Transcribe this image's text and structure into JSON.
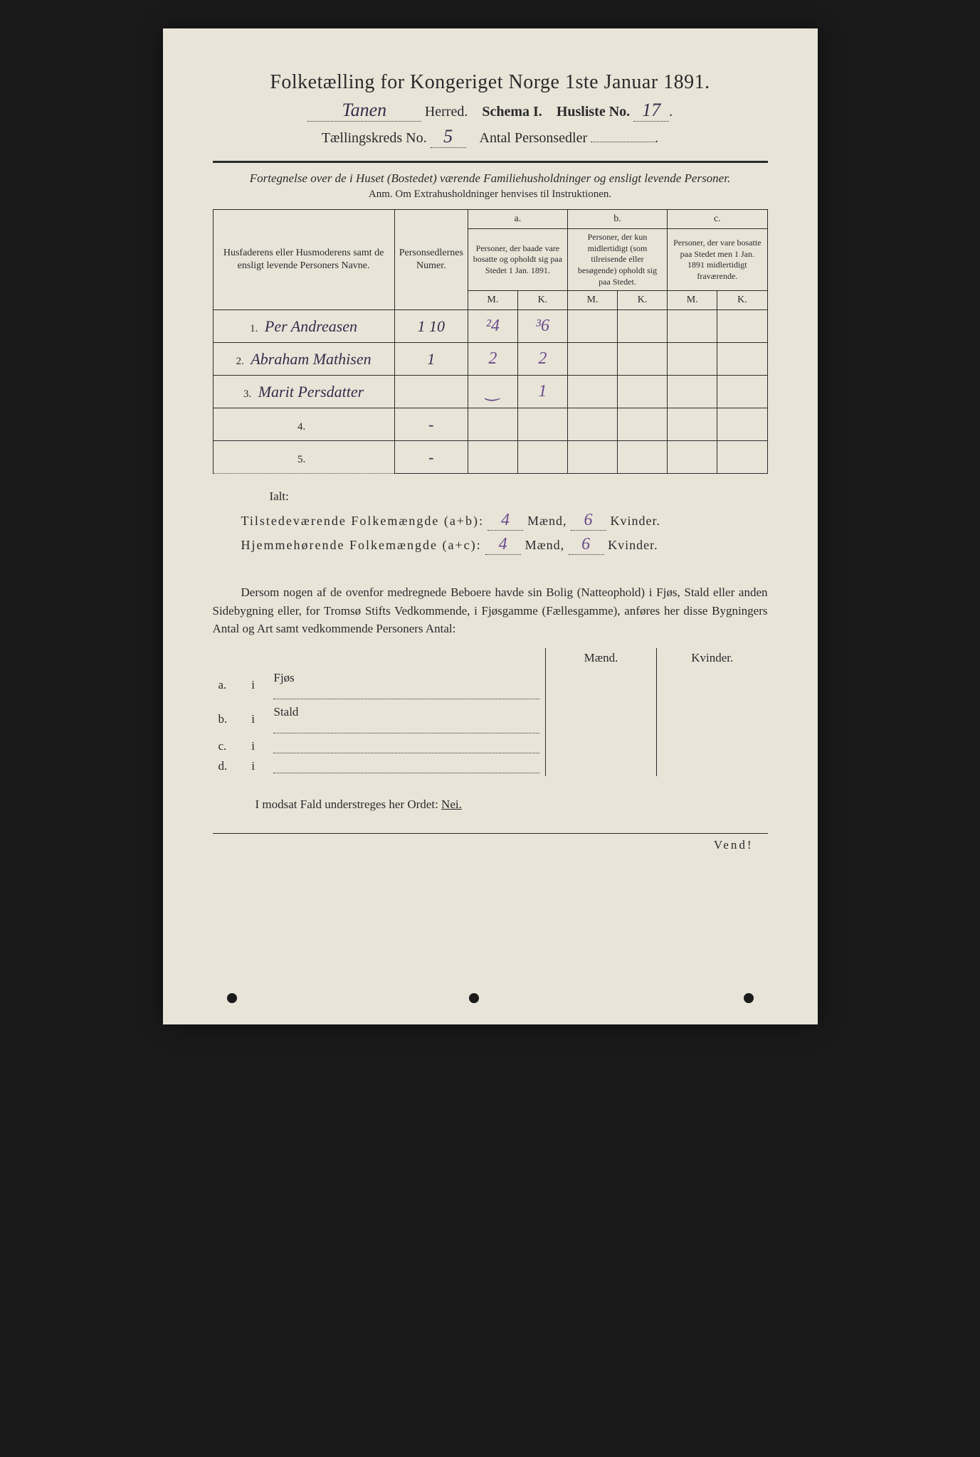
{
  "header": {
    "title": "Folketælling for Kongeriget Norge 1ste Januar 1891.",
    "herred_value": "Tanen",
    "herred_label": "Herred.",
    "schema_label": "Schema I.",
    "husliste_label": "Husliste No.",
    "husliste_value": "17",
    "kreds_label": "Tællingskreds No.",
    "kreds_value": "5",
    "antal_label": "Antal Personsedler",
    "antal_value": ""
  },
  "instructions": {
    "line1": "Fortegnelse over de i Huset (Bostedet) værende Familiehusholdninger og ensligt levende Personer.",
    "anm": "Anm. Om Extrahusholdninger henvises til Instruktionen."
  },
  "table": {
    "head_name": "Husfaderens eller Husmoderens samt de ensligt levende Personers Navne.",
    "head_num": "Personsedlernes Numer.",
    "head_a_label": "a.",
    "head_a": "Personer, der baade vare bosatte og opholdt sig paa Stedet 1 Jan. 1891.",
    "head_b_label": "b.",
    "head_b": "Personer, der kun midlertidigt (som tilreisende eller besøgende) opholdt sig paa Stedet.",
    "head_c_label": "c.",
    "head_c": "Personer, der vare bosatte paa Stedet men 1 Jan. 1891 midlertidigt fraværende.",
    "mk_m": "M.",
    "mk_k": "K.",
    "rows": [
      {
        "n": "1.",
        "name": "Per Andreasen",
        "num": "1 10",
        "aM": "²4",
        "aK": "³6",
        "bM": "",
        "bK": "",
        "cM": "",
        "cK": ""
      },
      {
        "n": "2.",
        "name": "Abraham Mathisen",
        "num": "1",
        "aM": "2",
        "aK": "2",
        "bM": "",
        "bK": "",
        "cM": "",
        "cK": ""
      },
      {
        "n": "3.",
        "name": "Marit Persdatter",
        "num": "",
        "aM": "‿",
        "aK": "1",
        "bM": "",
        "bK": "",
        "cM": "",
        "cK": ""
      },
      {
        "n": "4.",
        "name": "",
        "num": "-",
        "aM": "",
        "aK": "",
        "bM": "",
        "bK": "",
        "cM": "",
        "cK": ""
      },
      {
        "n": "5.",
        "name": "",
        "num": "-",
        "aM": "",
        "aK": "",
        "bM": "",
        "bK": "",
        "cM": "",
        "cK": ""
      }
    ]
  },
  "totals": {
    "ialt": "Ialt:",
    "line1_label": "Tilstedeværende Folkemængde (a+b):",
    "line2_label": "Hjemmehørende Folkemængde (a+c):",
    "maend": "Mænd,",
    "kvinder": "Kvinder.",
    "ab_m": "4",
    "ab_k": "6",
    "ac_m": "4",
    "ac_k": "6"
  },
  "para": "Dersom nogen af de ovenfor medregnede Beboere havde sin Bolig (Natteophold) i Fjøs, Stald eller anden Sidebygning eller, for Tromsø Stifts Vedkommende, i Fjøsgamme (Fællesgamme), anføres her disse Bygningers Antal og Art samt vedkommende Personers Antal:",
  "buildings": {
    "head_m": "Mænd.",
    "head_k": "Kvinder.",
    "rows": [
      {
        "l": "a.",
        "i": "i",
        "name": "Fjøs"
      },
      {
        "l": "b.",
        "i": "i",
        "name": "Stald"
      },
      {
        "l": "c.",
        "i": "i",
        "name": ""
      },
      {
        "l": "d.",
        "i": "i",
        "name": ""
      }
    ]
  },
  "modsat": {
    "text": "I modsat Fald understreges her Ordet:",
    "nei": "Nei."
  },
  "vend": "Vend!",
  "colors": {
    "paper": "#e8e4d8",
    "ink": "#2a2a2a",
    "handwriting": "#3a2a4a",
    "purple": "#6a4a8a",
    "background": "#1a1a1a"
  }
}
